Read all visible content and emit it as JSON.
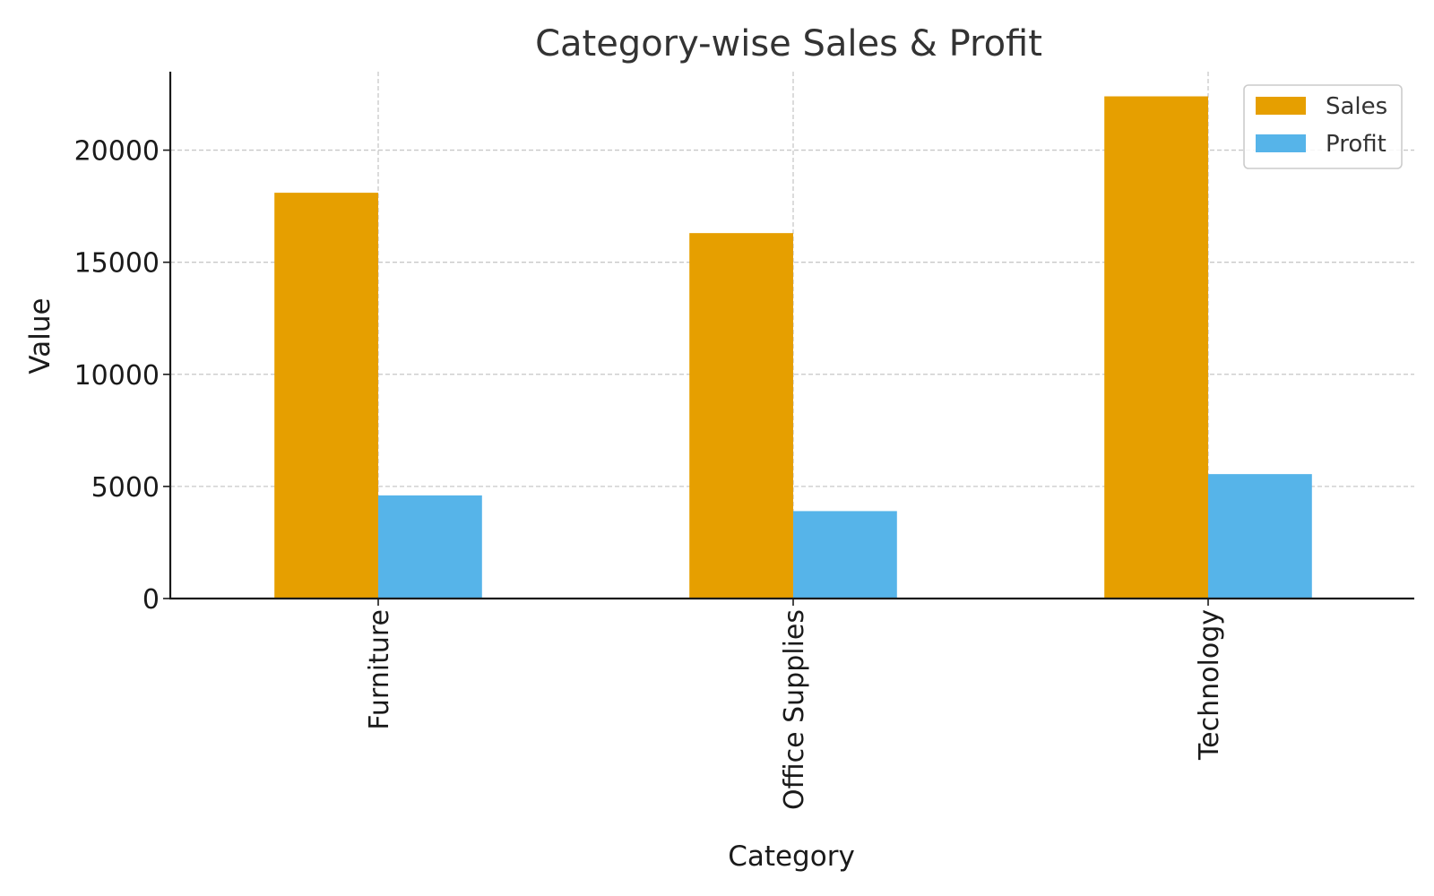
{
  "chart_data": {
    "type": "bar",
    "title": "Category-wise Sales & Profit",
    "xlabel": "Category",
    "ylabel": "Value",
    "categories": [
      "Furniture",
      "Office Supplies",
      "Technology"
    ],
    "series": [
      {
        "name": "Sales",
        "color": "#E69F00",
        "values": [
          18100,
          16300,
          22400
        ]
      },
      {
        "name": "Profit",
        "color": "#56B4E9",
        "values": [
          4600,
          3900,
          5550
        ]
      }
    ],
    "ylim": [
      0,
      23500
    ],
    "yticks": [
      0,
      5000,
      10000,
      15000,
      20000
    ],
    "ytick_labels": [
      "0",
      "5000",
      "10000",
      "15000",
      "20000"
    ],
    "grid": true,
    "legend_position": "top-right"
  }
}
